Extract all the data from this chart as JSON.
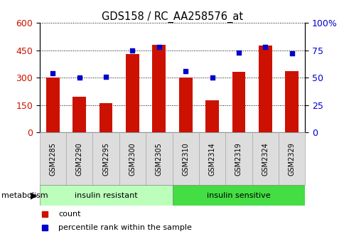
{
  "title": "GDS158 / RC_AA258576_at",
  "samples": [
    "GSM2285",
    "GSM2290",
    "GSM2295",
    "GSM2300",
    "GSM2305",
    "GSM2310",
    "GSM2314",
    "GSM2319",
    "GSM2324",
    "GSM2329"
  ],
  "counts": [
    300,
    195,
    160,
    430,
    480,
    300,
    175,
    330,
    475,
    335
  ],
  "percentiles": [
    54,
    50,
    51,
    75,
    78,
    56,
    50,
    73,
    78,
    72
  ],
  "groups": [
    {
      "label": "insulin resistant",
      "start": 0,
      "end": 5,
      "color": "#bbffbb"
    },
    {
      "label": "insulin sensitive",
      "start": 5,
      "end": 10,
      "color": "#44dd44"
    }
  ],
  "bar_color": "#cc1100",
  "dot_color": "#0000cc",
  "left_axis_color": "#cc1100",
  "right_axis_color": "#0000cc",
  "ylim_left": [
    0,
    600
  ],
  "ylim_right": [
    0,
    100
  ],
  "yticks_left": [
    0,
    150,
    300,
    450,
    600
  ],
  "yticks_right": [
    0,
    25,
    50,
    75,
    100
  ],
  "background_color": "#ffffff",
  "plot_bg_color": "#ffffff",
  "tick_label_color_left": "#cc1100",
  "tick_label_color_right": "#0000cc",
  "grid_color": "black",
  "legend_count_color": "#cc1100",
  "legend_pct_color": "#0000cc",
  "metabolism_label": "metabolism",
  "bar_width": 0.5,
  "sample_box_color": "#dddddd",
  "sample_box_edge": "#aaaaaa"
}
